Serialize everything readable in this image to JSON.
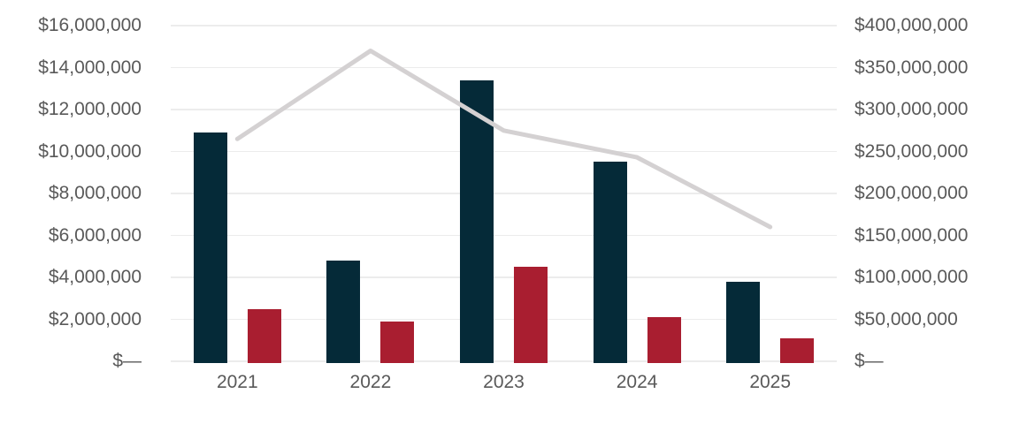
{
  "chart_data": {
    "type": "bar",
    "subtype": "grouped-bars-with-line-combo",
    "title": "",
    "categories": [
      "2021",
      "2022",
      "2023",
      "2024",
      "2025"
    ],
    "series": [
      {
        "name": "primary-bar-series",
        "type": "bar",
        "axis": "left",
        "color": "#052a38",
        "values": [
          10900000,
          4800000,
          13400000,
          9500000,
          3800000
        ]
      },
      {
        "name": "secondary-bar-series",
        "type": "bar",
        "axis": "left",
        "color": "#a91e30",
        "values": [
          2500000,
          1900000,
          4500000,
          2100000,
          1100000
        ]
      },
      {
        "name": "trend-line-series",
        "type": "line",
        "axis": "right",
        "color": "#d4d1d2",
        "values": [
          265000000,
          370000000,
          275000000,
          243000000,
          160000000
        ]
      }
    ],
    "left_axis": {
      "min": 0,
      "max": 16000000,
      "tick_labels_top_to_bottom": [
        "$16,000,000",
        "$14,000,000",
        "$12,000,000",
        "$10,000,000",
        "$8,000,000",
        "$6,000,000",
        "$4,000,000",
        "$2,000,000",
        "$—"
      ]
    },
    "right_axis": {
      "min": 0,
      "max": 400000000,
      "tick_labels_top_to_bottom": [
        "$400,000,000",
        "$350,000,000",
        "$300,000,000",
        "$250,000,000",
        "$200,000,000",
        "$150,000,000",
        "$100,000,000",
        "$50,000,000",
        "$—"
      ]
    },
    "grid": true,
    "legend": false,
    "colors": {
      "primary_bar": "#052a38",
      "secondary_bar": "#a91e30",
      "trend_line": "#d4d1d2",
      "gridline": "#ececec",
      "axis_text": "#595959",
      "background": "#ffffff"
    }
  }
}
